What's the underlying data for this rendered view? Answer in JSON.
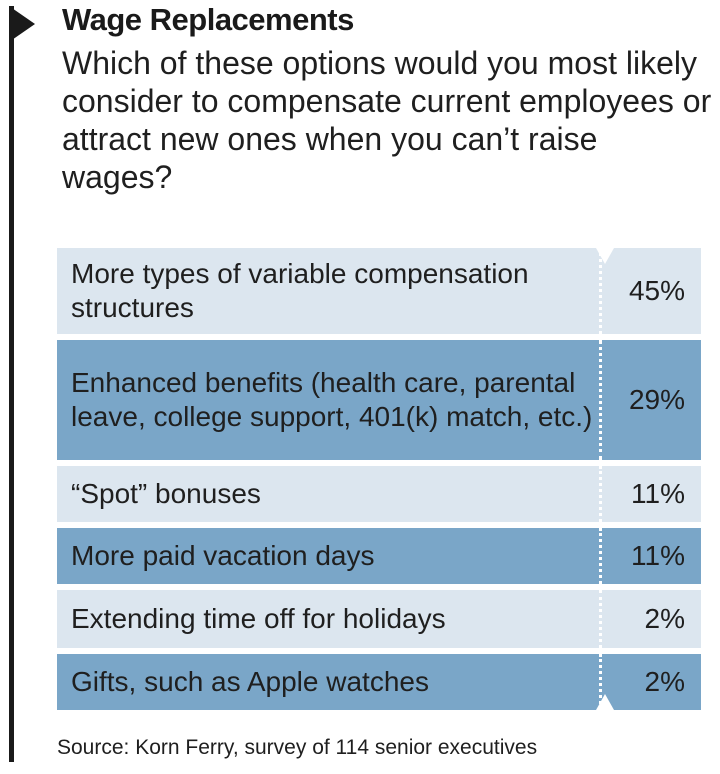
{
  "title": "Wage Replacements",
  "question": "Which of these options would you most likely consider to compensate current employees or attract new ones when you can’t raise wages?",
  "source": "Source: Korn Ferry, survey of 114 senior executives",
  "colors": {
    "light_row": "#dce6ef",
    "dark_row": "#7aa6c8",
    "rule": "#1a1a1a"
  },
  "chart_data": {
    "type": "table",
    "title": "Wage Replacements",
    "categories": [
      "More types of variable compensation structures",
      "Enhanced benefits (health care, parental leave, college support, 401(k) match, etc.)",
      "“Spot” bonuses",
      "More paid vacation days",
      "Extending time off for holidays",
      "Gifts, such as Apple watches"
    ],
    "values": [
      45,
      29,
      11,
      11,
      2,
      2
    ],
    "value_labels": [
      "45%",
      "29%",
      "11%",
      "11%",
      "2%",
      "2%"
    ]
  }
}
